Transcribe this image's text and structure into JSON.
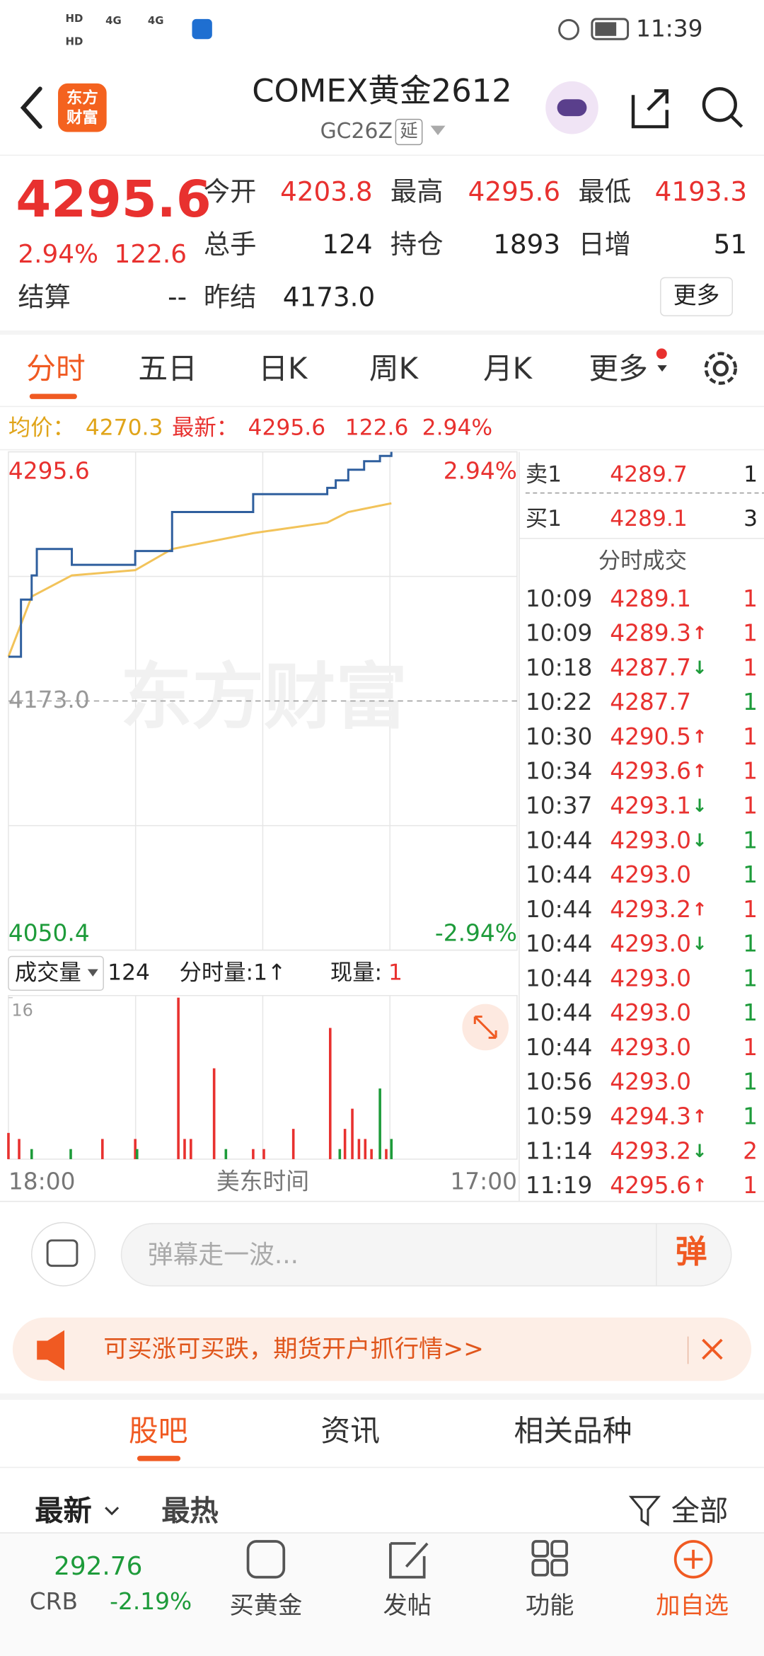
{
  "status_bar": {
    "network": [
      "HD",
      "HD",
      "4G",
      "4G"
    ],
    "time": "11:39"
  },
  "header": {
    "logo_lines": [
      "东方",
      "财富"
    ],
    "title": "COMEX黄金2612",
    "code": "GC26Z",
    "tag": "延"
  },
  "quote": {
    "price": "4295.6",
    "change_pct": "2.94%",
    "change": "122.6",
    "fields": [
      {
        "label": "今开",
        "value": "4203.8"
      },
      {
        "label": "最高",
        "value": "4295.6"
      },
      {
        "label": "最低",
        "value": "4193.3"
      },
      {
        "label": "总手",
        "value": "124"
      },
      {
        "label": "持仓",
        "value": "1893"
      },
      {
        "label": "日增",
        "value": "51"
      },
      {
        "label": "结算",
        "value": "--"
      },
      {
        "label": "昨结",
        "value": "4173.0"
      }
    ],
    "more": "更多"
  },
  "tabs": [
    "分时",
    "五日",
    "日K",
    "周K",
    "月K",
    "更多"
  ],
  "summary": {
    "avg_label": "均价：",
    "avg": "4270.3",
    "latest_label": "最新：",
    "latest": "4295.6",
    "change": "122.6",
    "change_pct": "2.94%"
  },
  "chart": {
    "ylim": [
      4050.4,
      4295.6
    ],
    "yticks": [
      4295.6,
      {
        "value": 4173,
        "label": "4173.0"
      },
      4050.4
    ],
    "pct_labels": [
      "2.94%",
      "-2.94%"
    ],
    "xlim": [
      "18:00",
      "17:00"
    ],
    "x_axis_label": "美东时间",
    "watermark": "东方财富",
    "price": {
      "color": "#2f5f9e",
      "x": [
        "18:00",
        "18:34",
        "19:03",
        "19:17",
        "20:43",
        "20:52",
        "23:44",
        "01:24",
        "05:04",
        "08:25",
        "08:48",
        "09:22",
        "10:05",
        "10:48",
        "11:19"
      ],
      "values": [
        4194.8,
        4222.9,
        4234.8,
        4247.8,
        4247.8,
        4240.0,
        4246.8,
        4266.0,
        4274.8,
        4277.9,
        4281.6,
        4286.8,
        4291.0,
        4293.6,
        4295.6
      ]
    },
    "avg": {
      "color": "#f2c35a",
      "x": [
        "18:00",
        "19:03",
        "20:52",
        "23:44",
        "01:24",
        "05:04",
        "08:25",
        "09:22",
        "11:19"
      ],
      "values": [
        4194.8,
        4224.4,
        4234.8,
        4237.4,
        4247.8,
        4255.6,
        4260.8,
        4266.0,
        4270.3
      ]
    },
    "volume": {
      "header_label": "成交量",
      "total": "124",
      "tick_label": "分时量:1↑",
      "current_label": "现量:",
      "current": "1",
      "ylim": [
        0,
        16
      ],
      "yticks": [
        16
      ],
      "x": [
        "18:00",
        "18:29",
        "19:03",
        "20:49",
        "22:15",
        "23:44",
        "23:49",
        "01:41",
        "01:58",
        "02:15",
        "03:18",
        "03:50",
        "05:04",
        "05:33",
        "06:53",
        "08:33",
        "08:59",
        "09:13",
        "09:33",
        "09:51",
        "10:08",
        "10:25",
        "10:48",
        "11:05",
        "11:19"
      ],
      "values": [
        2.6,
        2,
        1,
        1,
        2,
        2,
        1,
        16,
        2,
        2,
        9,
        1,
        1,
        1,
        3,
        13,
        1,
        3,
        5,
        2,
        2,
        1,
        7,
        1,
        2
      ],
      "colors": [
        "#e8312f",
        "#e8312f",
        "#1d9b3a",
        "#1d9b3a",
        "#e8312f",
        "#e8312f",
        "#1d9b3a",
        "#e8312f",
        "#e8312f",
        "#e8312f",
        "#e8312f",
        "#1d9b3a",
        "#e8312f",
        "#e8312f",
        "#e8312f",
        "#e8312f",
        "#1d9b3a",
        "#e8312f",
        "#e8312f",
        "#e8312f",
        "#e8312f",
        "#e8312f",
        "#1d9b3a",
        "#e8312f",
        "#1d9b3a"
      ]
    }
  },
  "book": [
    {
      "label": "卖1",
      "price": "4289.7",
      "volume": "1"
    },
    {
      "label": "买1",
      "price": "4289.1",
      "volume": "3"
    }
  ],
  "trades_title": "分时成交",
  "trades": [
    {
      "time": "10:09",
      "price": "4289.1",
      "volume": "1",
      "vol_color": "#e8312f"
    },
    {
      "time": "10:09",
      "price": "4289.3",
      "arrow": "↑",
      "volume": "1",
      "vol_color": "#e8312f"
    },
    {
      "time": "10:18",
      "price": "4287.7",
      "arrow": "↓",
      "volume": "1",
      "vol_color": "#e8312f"
    },
    {
      "time": "10:22",
      "price": "4287.7",
      "volume": "1",
      "vol_color": "#1d9b3a"
    },
    {
      "time": "10:30",
      "price": "4290.5",
      "arrow": "↑",
      "volume": "1",
      "vol_color": "#e8312f"
    },
    {
      "time": "10:34",
      "price": "4293.6",
      "arrow": "↑",
      "volume": "1",
      "vol_color": "#e8312f"
    },
    {
      "time": "10:37",
      "price": "4293.1",
      "arrow": "↓",
      "volume": "1",
      "vol_color": "#e8312f"
    },
    {
      "time": "10:44",
      "price": "4293.0",
      "arrow": "↓",
      "volume": "1",
      "vol_color": "#1d9b3a"
    },
    {
      "time": "10:44",
      "price": "4293.0",
      "volume": "1",
      "vol_color": "#1d9b3a"
    },
    {
      "time": "10:44",
      "price": "4293.2",
      "arrow": "↑",
      "volume": "1",
      "vol_color": "#e8312f"
    },
    {
      "time": "10:44",
      "price": "4293.0",
      "arrow": "↓",
      "volume": "1",
      "vol_color": "#1d9b3a"
    },
    {
      "time": "10:44",
      "price": "4293.0",
      "volume": "1",
      "vol_color": "#1d9b3a"
    },
    {
      "time": "10:44",
      "price": "4293.0",
      "volume": "1",
      "vol_color": "#1d9b3a"
    },
    {
      "time": "10:44",
      "price": "4293.0",
      "volume": "1",
      "vol_color": "#e8312f"
    },
    {
      "time": "10:56",
      "price": "4293.0",
      "volume": "1",
      "vol_color": "#1d9b3a"
    },
    {
      "time": "10:59",
      "price": "4294.3",
      "arrow": "↑",
      "volume": "1",
      "vol_color": "#1d9b3a"
    },
    {
      "time": "11:14",
      "price": "4293.2",
      "arrow": "↓",
      "volume": "2",
      "vol_color": "#e8312f"
    },
    {
      "time": "11:19",
      "price": "4295.6",
      "arrow": "↑",
      "volume": "1",
      "vol_color": "#e8312f"
    }
  ],
  "comment": {
    "placeholder": "弹幕走一波...",
    "button": "弹"
  },
  "banner": {
    "text": "可买涨可买跌，期货开户抓行情>>"
  },
  "section_tabs": [
    "股吧",
    "资讯",
    "相关品种"
  ],
  "filters": {
    "latest": "最新",
    "hot": "最热",
    "all": "全部"
  },
  "nav": {
    "index_value": "292.76",
    "index_name": "CRB",
    "index_change": "-2.19%",
    "items": [
      "买黄金",
      "发帖",
      "功能",
      "加自选"
    ]
  }
}
